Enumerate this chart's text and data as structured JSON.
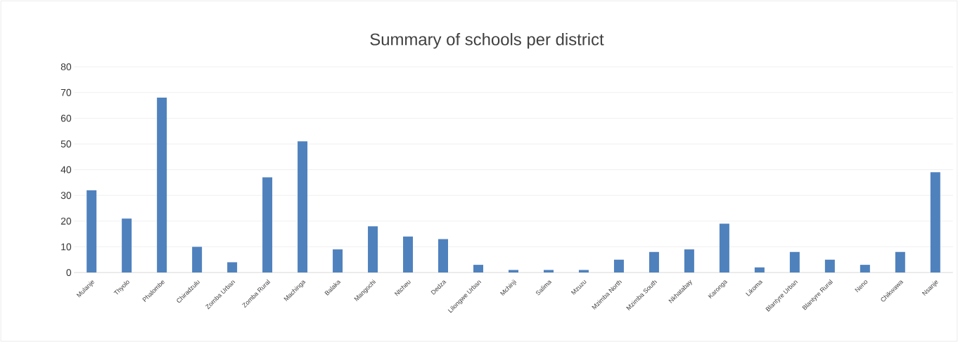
{
  "chart_data": {
    "type": "bar",
    "title": "Summary of schools per district",
    "categories": [
      "Mulanje",
      "Thyolo",
      "Phalombe",
      "Chiradzulu",
      "Zomba Urban",
      "Zomba Rural",
      "Machinga",
      "Balaka",
      "Mangochi",
      "Ntcheu",
      "Dedza",
      "Lilongwe Urban",
      "Mchinji",
      "Salima",
      "Mzuzu",
      "Mzimba North",
      "Mzimba South",
      "Nkhatabay",
      "Karonga",
      "Likoma",
      "Blantyre Urban",
      "Blantyre Rural",
      "Neno",
      "Chikwawa",
      "Nsanje"
    ],
    "values": [
      32,
      21,
      68,
      10,
      4,
      37,
      51,
      9,
      18,
      14,
      13,
      3,
      1,
      1,
      1,
      5,
      8,
      9,
      19,
      2,
      8,
      5,
      3,
      8,
      39
    ],
    "color": "#4f81bd",
    "ylim": [
      0,
      80
    ],
    "yticks": [
      0,
      10,
      20,
      30,
      40,
      50,
      60,
      70,
      80
    ],
    "grid": "y"
  }
}
